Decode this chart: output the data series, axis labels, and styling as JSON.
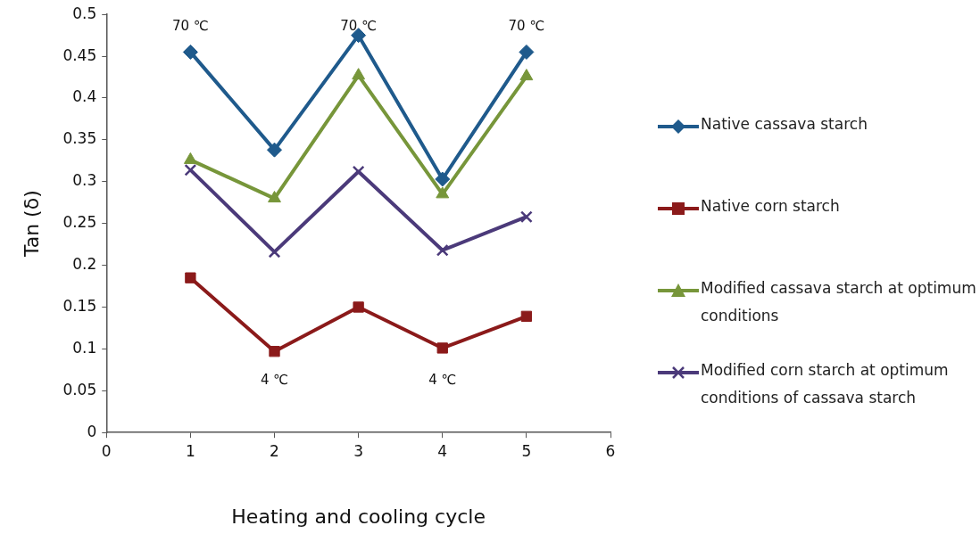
{
  "chart_data": {
    "type": "line",
    "xlabel": "Heating and cooling cycle",
    "ylabel": "Tan (δ)",
    "x": [
      1,
      2,
      3,
      4,
      5
    ],
    "series": [
      {
        "name": "Native cassava starch",
        "color": "#1f5a8c",
        "marker": "diamond",
        "values": [
          0.455,
          0.338,
          0.475,
          0.303,
          0.455
        ]
      },
      {
        "name": "Native corn starch",
        "color": "#8b1a1a",
        "marker": "square",
        "values": [
          0.185,
          0.097,
          0.15,
          0.101,
          0.139
        ]
      },
      {
        "name": "Modified cassava starch at optimum conditions",
        "color": "#77963a",
        "marker": "triangle",
        "values": [
          0.326,
          0.28,
          0.427,
          0.285,
          0.426
        ]
      },
      {
        "name": "Modified corn starch at optimum conditions of cassava starch",
        "color": "#4b3a7a",
        "marker": "cross",
        "values": [
          0.314,
          0.216,
          0.312,
          0.218,
          0.258
        ]
      }
    ],
    "xlim": [
      0,
      6
    ],
    "xticks": [
      0,
      1,
      2,
      3,
      4,
      5,
      6
    ],
    "ylim": [
      0,
      0.5
    ],
    "yticks": [
      0,
      0.05,
      0.1,
      0.15,
      0.2,
      0.25,
      0.3,
      0.35,
      0.4,
      0.45,
      0.5
    ],
    "grid": false,
    "legend": "right",
    "annotations": [
      "70 ℃",
      "4 ℃",
      "70 ℃",
      "4 ℃",
      "70 ℃"
    ]
  }
}
